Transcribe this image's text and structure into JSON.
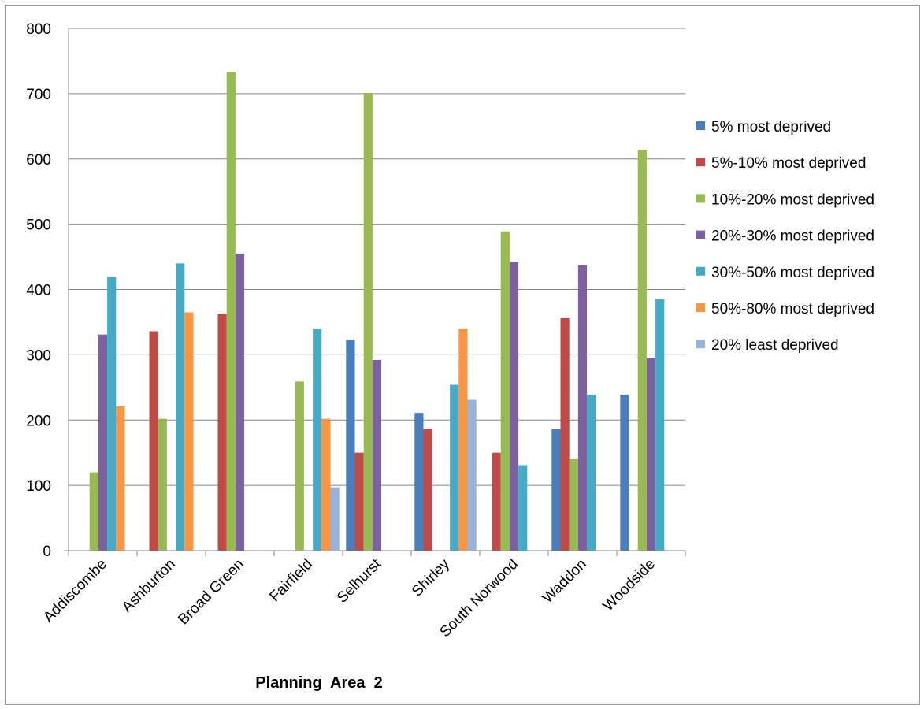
{
  "chart_data": {
    "type": "bar",
    "title": "",
    "xlabel": "Planning  Area  2",
    "ylabel": "",
    "ylim": [
      0,
      800
    ],
    "yticks": [
      0,
      100,
      200,
      300,
      400,
      500,
      600,
      700,
      800
    ],
    "grid": true,
    "legend_position": "right",
    "categories": [
      "Addiscombe",
      "Ashburton",
      "Broad Green",
      "Fairfield",
      "Selhurst",
      "Shirley",
      "South Norwood",
      "Waddon",
      "Woodside"
    ],
    "series": [
      {
        "name": "5% most deprived",
        "color": "#4a7ebb",
        "values": [
          null,
          null,
          null,
          null,
          323,
          211,
          null,
          187,
          239
        ]
      },
      {
        "name": "5%-10% most deprived",
        "color": "#be4b48",
        "values": [
          null,
          336,
          363,
          null,
          150,
          187,
          150,
          356,
          null
        ]
      },
      {
        "name": "10%-20% most deprived",
        "color": "#98b954",
        "values": [
          120,
          202,
          733,
          259,
          701,
          null,
          489,
          140,
          614
        ]
      },
      {
        "name": "20%-30% most deprived",
        "color": "#7d60a0",
        "values": [
          331,
          null,
          455,
          null,
          292,
          null,
          442,
          437,
          295
        ]
      },
      {
        "name": "30%-50% most deprived",
        "color": "#46aac5",
        "values": [
          419,
          440,
          null,
          340,
          null,
          254,
          131,
          239,
          385
        ]
      },
      {
        "name": "50%-80% most deprived",
        "color": "#f79646",
        "values": [
          221,
          365,
          null,
          202,
          null,
          340,
          null,
          null,
          null
        ]
      },
      {
        "name": "20% least deprived",
        "color": "#98b2d9",
        "values": [
          null,
          null,
          null,
          97,
          null,
          231,
          null,
          null,
          null
        ]
      }
    ]
  }
}
